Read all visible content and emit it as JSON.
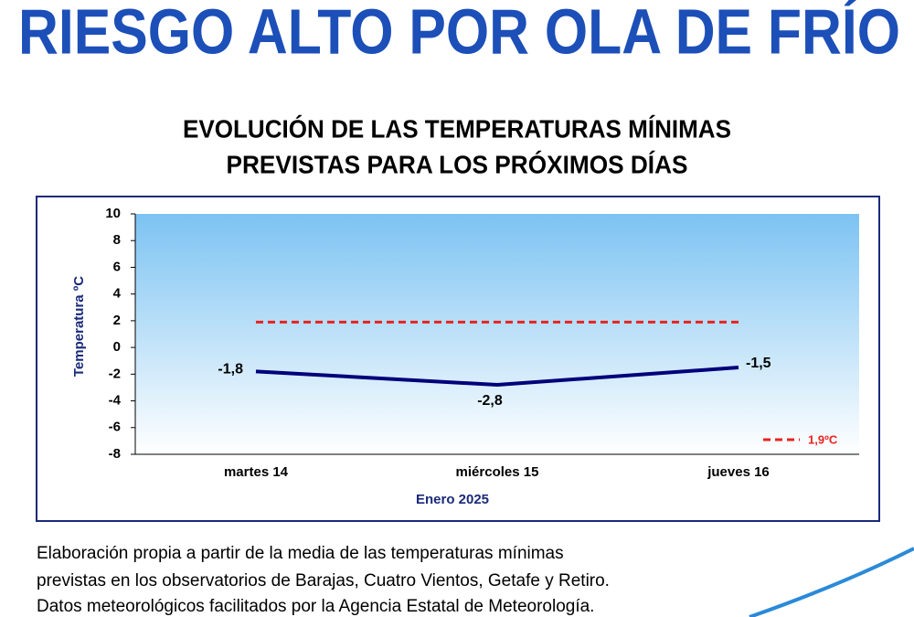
{
  "header": {
    "title": "RIESGO ALTO POR OLA DE FRÍO"
  },
  "chart_data": {
    "type": "line",
    "title": [
      "EVOLUCIÓN DE LAS TEMPERATURAS MÍNIMAS",
      "PREVISTAS PARA LOS PRÓXIMOS DÍAS"
    ],
    "x_label": "Enero 2025",
    "y_label": "Temperatura ºC",
    "categories": [
      "martes 14",
      "miércoles 15",
      "jueves 16"
    ],
    "series": [
      {
        "color": "#00007a",
        "values": [
          -1.8,
          -2.8,
          -1.5
        ],
        "value_labels": [
          "-1,8",
          "-2,8",
          "-1,5"
        ]
      },
      {
        "name": "1,9ºC",
        "color": "#e8231f",
        "dashed": true,
        "values": [
          1.9,
          1.9,
          1.9
        ]
      }
    ],
    "ylim": [
      -8,
      10
    ],
    "yticks": [
      -8,
      -6,
      -4,
      -2,
      0,
      2,
      4,
      6,
      8,
      10
    ],
    "grid": false
  },
  "footer": {
    "lines": [
      "Elaboración propia a partir de la media de las temperaturas mínimas",
      "previstas en los observatorios de Barajas, Cuatro Vientos, Getafe y Retiro.",
      "Datos meteorológicos facilitados por la Agencia Estatal de Meteorología."
    ]
  }
}
